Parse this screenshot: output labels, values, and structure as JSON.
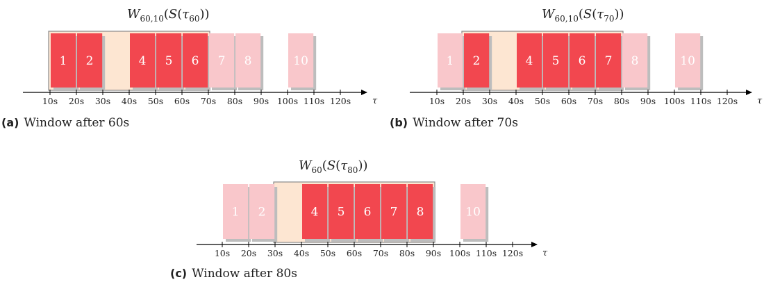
{
  "colors": {
    "active": "#f2474f",
    "inactive": "#f9c7cb",
    "shadow": "#bdbdbd",
    "window_fill": "#fde6d2",
    "window_stroke": "#8a8a8a",
    "axis": "#000000",
    "block_label": "#ffffff"
  },
  "axis_symbol": "τ",
  "tick_labels": [
    "10s",
    "20s",
    "30s",
    "40s",
    "50s",
    "60s",
    "70s",
    "80s",
    "90s",
    "100s",
    "110s",
    "120s"
  ],
  "panels": [
    {
      "id": "a",
      "title": {
        "fn": "W",
        "sub": "60,10",
        "open": "(S(τ",
        "tau_sub": "60",
        "close": "))"
      },
      "caption_tag": "(a)",
      "caption_text": "Window after 60s",
      "window": [
        10,
        70
      ],
      "blocks": [
        {
          "label": "1",
          "start": 10,
          "end": 19,
          "state": "active"
        },
        {
          "label": "2",
          "start": 20,
          "end": 29,
          "state": "active"
        },
        {
          "label": "4",
          "start": 40,
          "end": 49,
          "state": "active"
        },
        {
          "label": "5",
          "start": 50,
          "end": 59,
          "state": "active"
        },
        {
          "label": "6",
          "start": 60,
          "end": 69,
          "state": "active"
        },
        {
          "label": "7",
          "start": 70,
          "end": 79,
          "state": "inactive"
        },
        {
          "label": "8",
          "start": 80,
          "end": 89,
          "state": "inactive"
        },
        {
          "label": "10",
          "start": 100,
          "end": 109,
          "state": "inactive"
        }
      ]
    },
    {
      "id": "b",
      "title": {
        "fn": "W",
        "sub": "60,10",
        "open": "(S(τ",
        "tau_sub": "70",
        "close": "))"
      },
      "caption_tag": "(b)",
      "caption_text": "Window after 70s",
      "window": [
        20,
        80
      ],
      "blocks": [
        {
          "label": "1",
          "start": 10,
          "end": 19,
          "state": "inactive"
        },
        {
          "label": "2",
          "start": 20,
          "end": 29,
          "state": "active"
        },
        {
          "label": "4",
          "start": 40,
          "end": 49,
          "state": "active"
        },
        {
          "label": "5",
          "start": 50,
          "end": 59,
          "state": "active"
        },
        {
          "label": "6",
          "start": 60,
          "end": 69,
          "state": "active"
        },
        {
          "label": "7",
          "start": 70,
          "end": 79,
          "state": "active"
        },
        {
          "label": "8",
          "start": 80,
          "end": 89,
          "state": "inactive"
        },
        {
          "label": "10",
          "start": 100,
          "end": 109,
          "state": "inactive"
        }
      ]
    },
    {
      "id": "c",
      "title": {
        "fn": "W",
        "sub": "60",
        "open": "(S(τ",
        "tau_sub": "80",
        "close": "))"
      },
      "caption_tag": "(c)",
      "caption_text": "Window after 80s",
      "window": [
        30,
        90
      ],
      "blocks": [
        {
          "label": "1",
          "start": 10,
          "end": 19,
          "state": "inactive"
        },
        {
          "label": "2",
          "start": 20,
          "end": 29,
          "state": "inactive"
        },
        {
          "label": "4",
          "start": 40,
          "end": 49,
          "state": "active"
        },
        {
          "label": "5",
          "start": 50,
          "end": 59,
          "state": "active"
        },
        {
          "label": "6",
          "start": 60,
          "end": 69,
          "state": "active"
        },
        {
          "label": "7",
          "start": 70,
          "end": 79,
          "state": "active"
        },
        {
          "label": "8",
          "start": 80,
          "end": 89,
          "state": "active"
        },
        {
          "label": "10",
          "start": 100,
          "end": 109,
          "state": "inactive"
        }
      ]
    }
  ]
}
